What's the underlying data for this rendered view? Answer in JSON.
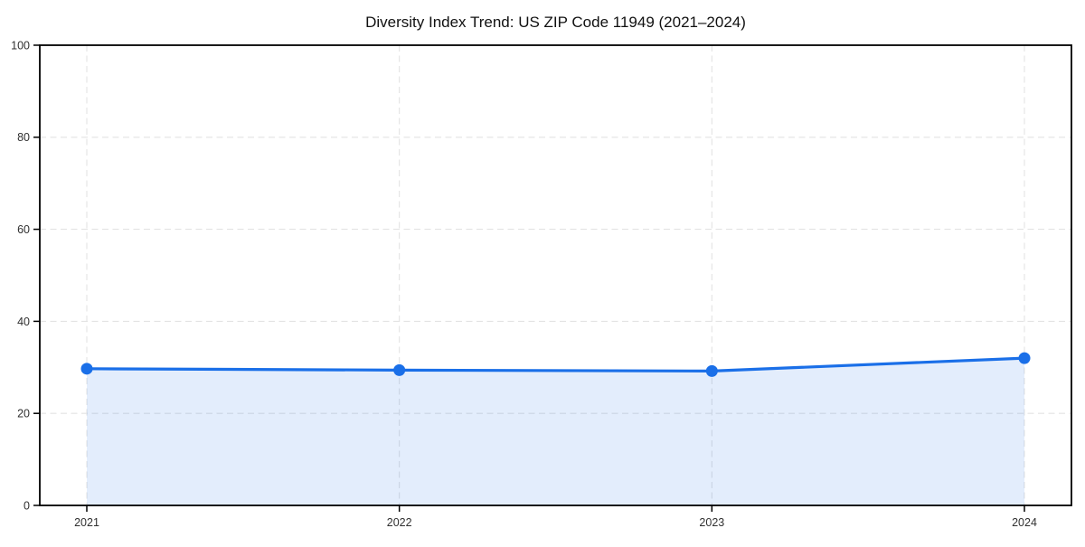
{
  "figure": {
    "title": "Diversity Index Trend: US ZIP Code 11949 (2021–2024)"
  },
  "chart_data": {
    "type": "area",
    "title": "Diversity Index Trend: US ZIP Code 11949 (2021–2024)",
    "categories": [
      "2021",
      "2022",
      "2023",
      "2024"
    ],
    "series": [
      {
        "name": "Diversity Index",
        "values": [
          29.7,
          29.4,
          29.2,
          32.0
        ]
      }
    ],
    "xlabel": "",
    "ylabel": "",
    "ylim": [
      0,
      100
    ],
    "yticks": [
      0,
      20,
      40,
      60,
      80,
      100
    ],
    "ytick_labels": [
      "0",
      "20",
      "40",
      "60",
      "80",
      "100"
    ],
    "grid": true,
    "grid_style": "dashed",
    "legend_position": "none",
    "line_color": "#1a6fe8",
    "marker_color": "#1a6fe8",
    "fill_color": "#1a6fe8",
    "fill_opacity": 0.12,
    "grid_color": "#e3e3e3",
    "axis_color": "#000000",
    "tick_label_color": "#303030",
    "title_color": "#111111"
  }
}
